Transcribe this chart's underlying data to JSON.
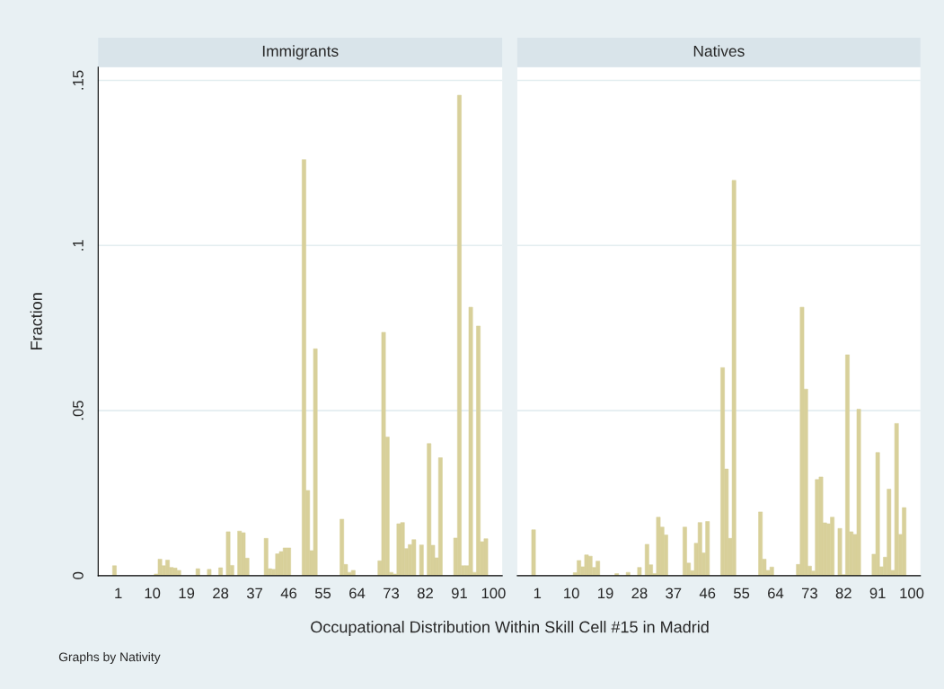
{
  "chart_data": [
    {
      "type": "bar",
      "title": "Immigrants",
      "xlabel": "Occupational Distribution Within Skill Cell #15 in Madrid",
      "ylabel": "Fraction",
      "annotations": [
        "Graphs by Nativity"
      ],
      "color": "#d8d09a",
      "grid": "y",
      "x": [
        0,
        11,
        12,
        13,
        14,
        15,
        16,
        17,
        22,
        25,
        28,
        30,
        31,
        33,
        34,
        35,
        40,
        41,
        42,
        43,
        44,
        45,
        46,
        50,
        51,
        52,
        53,
        60,
        61,
        62,
        63,
        70,
        71,
        72,
        73,
        74,
        75,
        76,
        77,
        78,
        79,
        81,
        83,
        84,
        85,
        86,
        90,
        91,
        92,
        93,
        94,
        95,
        96,
        97,
        98
      ],
      "values": [
        0.003,
        0.0005,
        0.005,
        0.003,
        0.0047,
        0.0025,
        0.0023,
        0.0016,
        0.0021,
        0.0019,
        0.0024,
        0.0133,
        0.0031,
        0.0135,
        0.013,
        0.0053,
        0.0113,
        0.0021,
        0.0019,
        0.0066,
        0.0073,
        0.0084,
        0.0084,
        0.126,
        0.0258,
        0.0076,
        0.0687,
        0.0171,
        0.0034,
        0.001,
        0.0016,
        0.0045,
        0.0737,
        0.042,
        0.001,
        0.0005,
        0.0157,
        0.0161,
        0.0082,
        0.0094,
        0.0109,
        0.0093,
        0.04,
        0.0092,
        0.0054,
        0.0357,
        0.0114,
        0.1455,
        0.003,
        0.003,
        0.0813,
        0.001,
        0.0756,
        0.0103,
        0.0112
      ],
      "xlim": [
        -4.3,
        102.3
      ],
      "xticks": [
        1,
        10,
        19,
        28,
        37,
        46,
        55,
        64,
        73,
        82,
        91,
        100
      ],
      "ylim": [
        0,
        0.154
      ],
      "yticks": [
        {
          "value": 0,
          "label": "0"
        },
        {
          "value": 0.05,
          "label": ".05"
        },
        {
          "value": 0.1,
          "label": ".1"
        },
        {
          "value": 0.15,
          "label": ".15"
        }
      ]
    },
    {
      "type": "bar",
      "title": "Natives",
      "color": "#d8d09a",
      "grid": "y",
      "tick_labels": "x",
      "x": [
        0,
        11,
        12,
        13,
        14,
        15,
        16,
        17,
        22,
        25,
        28,
        30,
        31,
        32,
        33,
        34,
        35,
        40,
        41,
        42,
        43,
        44,
        45,
        46,
        50,
        51,
        52,
        53,
        60,
        61,
        62,
        63,
        70,
        71,
        72,
        73,
        74,
        75,
        76,
        77,
        78,
        79,
        81,
        82,
        83,
        84,
        85,
        86,
        90,
        91,
        92,
        93,
        94,
        95,
        96,
        97,
        98
      ],
      "values": [
        0.0139,
        0.0009,
        0.0046,
        0.0027,
        0.0063,
        0.0059,
        0.0025,
        0.0044,
        0.0006,
        0.001,
        0.0025,
        0.0095,
        0.0033,
        0.0006,
        0.0177,
        0.0147,
        0.0123,
        0.0147,
        0.0038,
        0.0015,
        0.0098,
        0.0161,
        0.0069,
        0.0164,
        0.063,
        0.0323,
        0.0113,
        0.1197,
        0.0193,
        0.005,
        0.0016,
        0.0026,
        0.0034,
        0.0813,
        0.0565,
        0.0029,
        0.0014,
        0.0291,
        0.0299,
        0.016,
        0.0157,
        0.0177,
        0.0143,
        0.0003,
        0.0669,
        0.0133,
        0.0125,
        0.0504,
        0.0065,
        0.0373,
        0.0027,
        0.0056,
        0.0262,
        0.0016,
        0.0461,
        0.0125,
        0.0206
      ],
      "xlim": [
        -4.3,
        102.3
      ],
      "xticks": [
        1,
        10,
        19,
        28,
        37,
        46,
        55,
        64,
        73,
        82,
        91,
        100
      ],
      "ylim": [
        0,
        0.154
      ],
      "yticks": [
        {
          "value": 0,
          "label": null
        },
        {
          "value": 0.05,
          "label": null
        },
        {
          "value": 0.1,
          "label": null
        },
        {
          "value": 0.15,
          "label": null
        }
      ]
    }
  ]
}
